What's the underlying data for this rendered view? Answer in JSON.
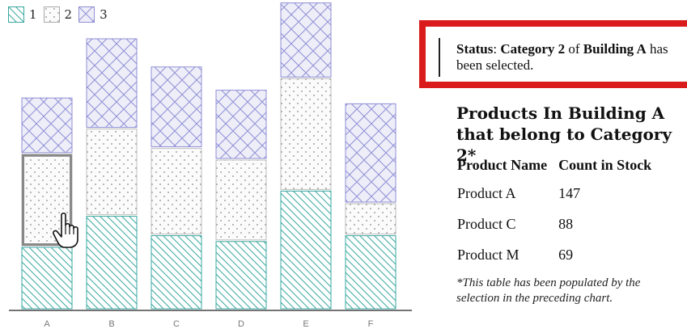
{
  "legend": [
    {
      "label": "1",
      "pattern": "hatch"
    },
    {
      "label": "2",
      "pattern": "dots"
    },
    {
      "label": "3",
      "pattern": "cross"
    }
  ],
  "colors": {
    "hatch": "#3aa8a0",
    "dots": "#9a9a9a",
    "cross": "#8f8fd6",
    "cross_fill": "#eeeef9",
    "selection": "#888888",
    "status_border": "#d91b1b"
  },
  "status": {
    "prefix": "Status",
    "text_1": ": ",
    "category": "Category 2",
    "text_2": " of ",
    "building": "Building A",
    "text_3": " has been selected."
  },
  "products": {
    "title": "Products In Building A that belong to Category 2*",
    "columns": [
      "Product Name",
      "Count in Stock"
    ],
    "rows": [
      {
        "name": "Product A",
        "count": "147"
      },
      {
        "name": "Product C",
        "count": "88"
      },
      {
        "name": "Product M",
        "count": "69"
      }
    ],
    "footnote": "*This table has been populated by the selection in the preceding chart."
  },
  "chart_data": {
    "type": "bar",
    "stacked": true,
    "categories": [
      "A",
      "B",
      "C",
      "D",
      "E",
      "F"
    ],
    "series": [
      {
        "name": "1",
        "values": [
          65,
          97,
          77,
          71,
          123,
          77
        ]
      },
      {
        "name": "2",
        "values": [
          96,
          90,
          90,
          84,
          116,
          33
        ]
      },
      {
        "name": "3",
        "values": [
          58,
          93,
          84,
          72,
          78,
          103
        ]
      }
    ],
    "ylim": [
      0,
      320
    ],
    "selected": {
      "category": "A",
      "series": "2"
    },
    "grid": false
  }
}
